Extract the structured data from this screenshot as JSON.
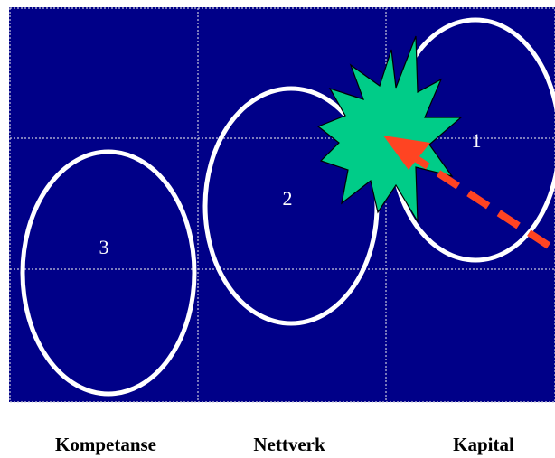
{
  "colors": {
    "background": "#000088",
    "grid": "#c8c8dc",
    "ellipse_stroke": "#ffffff",
    "star_fill": "#00cc88",
    "arrow": "#ff4422",
    "label_text": "#000000",
    "number_text": "#ffffff"
  },
  "circle_labels": [
    "1",
    "2",
    "3"
  ],
  "columns": [
    "Kompetanse",
    "Nettverk",
    "Kapital"
  ]
}
